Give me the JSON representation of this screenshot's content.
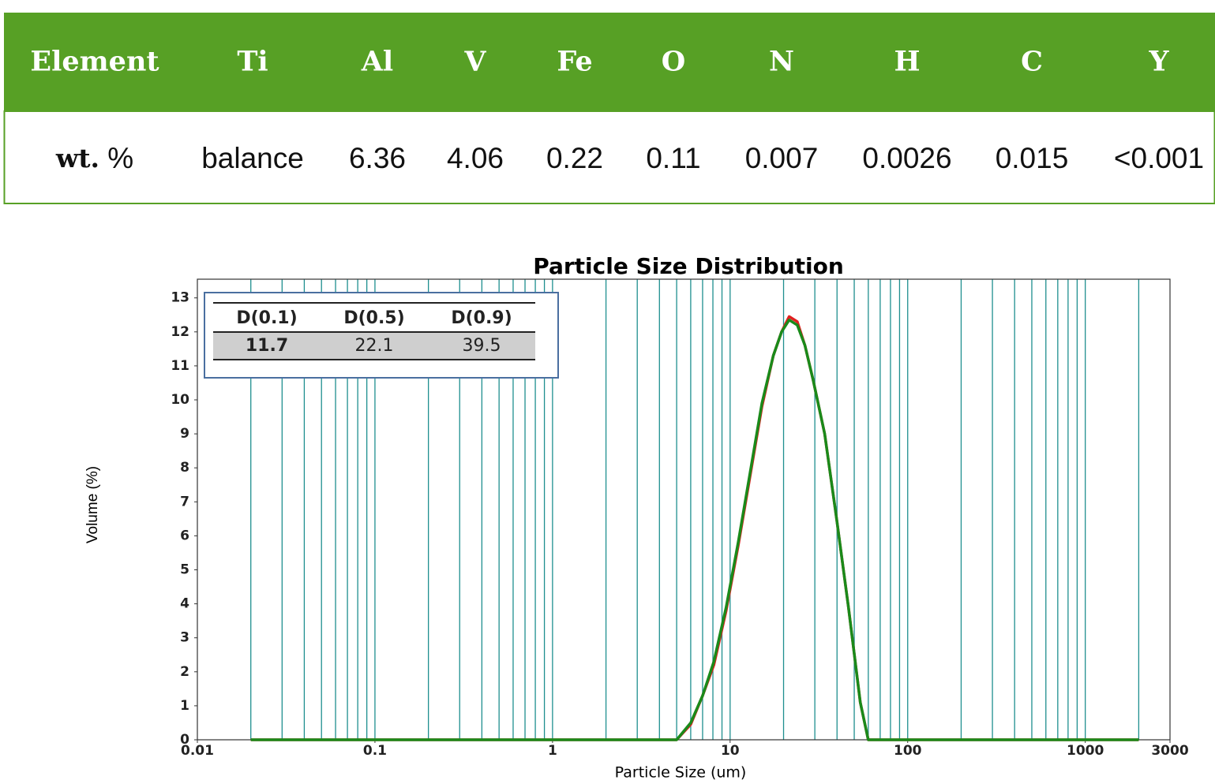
{
  "table": {
    "header": [
      "Element",
      "Ti",
      "Al",
      "V",
      "Fe",
      "O",
      "N",
      "H",
      "C",
      "Y"
    ],
    "row_label": {
      "bold": "wt.",
      "plain": "%"
    },
    "row": [
      "balance",
      "6.36",
      "4.06",
      "0.22",
      "0.11",
      "0.007",
      "0.0026",
      "0.015",
      "<0.001"
    ]
  },
  "chart_data": {
    "type": "line",
    "title": "Particle Size Distribution",
    "x_label": "Particle Size (um)",
    "y_label": "Volume (%)",
    "xscale": "log",
    "xlim": [
      0.01,
      3000
    ],
    "ylim": [
      0,
      13.55
    ],
    "xticks": [
      0.01,
      0.1,
      1,
      10,
      100,
      1000,
      3000
    ],
    "yticks": [
      0,
      1,
      2,
      3,
      4,
      5,
      6,
      7,
      8,
      9,
      10,
      11,
      12,
      13
    ],
    "xgrid": [
      0.02,
      0.03,
      0.04,
      0.05,
      0.06,
      0.07,
      0.08,
      0.09,
      0.1,
      0.2,
      0.3,
      0.4,
      0.5,
      0.6,
      0.7,
      0.8,
      0.9,
      1,
      2,
      3,
      4,
      5,
      6,
      7,
      8,
      9,
      10,
      20,
      30,
      40,
      50,
      60,
      70,
      80,
      90,
      100,
      200,
      300,
      400,
      500,
      600,
      700,
      800,
      900,
      1000,
      2000
    ],
    "grid_color": "#1f8f8f",
    "x": [
      0.02,
      5,
      6,
      7,
      8.1,
      9.5,
      11.1,
      12.9,
      15.1,
      17.5,
      19.5,
      21.5,
      23.9,
      26.4,
      29.3,
      34.1,
      39.8,
      46.4,
      54.1,
      60,
      2000
    ],
    "series": [
      {
        "color": "#e02020",
        "values": [
          0,
          0,
          0.45,
          1.3,
          2.2,
          3.8,
          5.7,
          7.7,
          9.8,
          11.3,
          12.0,
          12.45,
          12.3,
          11.6,
          10.6,
          9.0,
          6.5,
          3.9,
          1.1,
          0,
          0
        ]
      },
      {
        "color": "#1a8a1a",
        "values": [
          0,
          0,
          0.5,
          1.3,
          2.3,
          3.9,
          5.8,
          7.8,
          9.9,
          11.3,
          12.0,
          12.35,
          12.2,
          11.6,
          10.6,
          9.0,
          6.5,
          3.9,
          1.1,
          0,
          0
        ]
      }
    ],
    "inset": {
      "headers": [
        "D(0.1)",
        "D(0.5)",
        "D(0.9)"
      ],
      "values": [
        11.7,
        22.1,
        39.5
      ]
    }
  }
}
